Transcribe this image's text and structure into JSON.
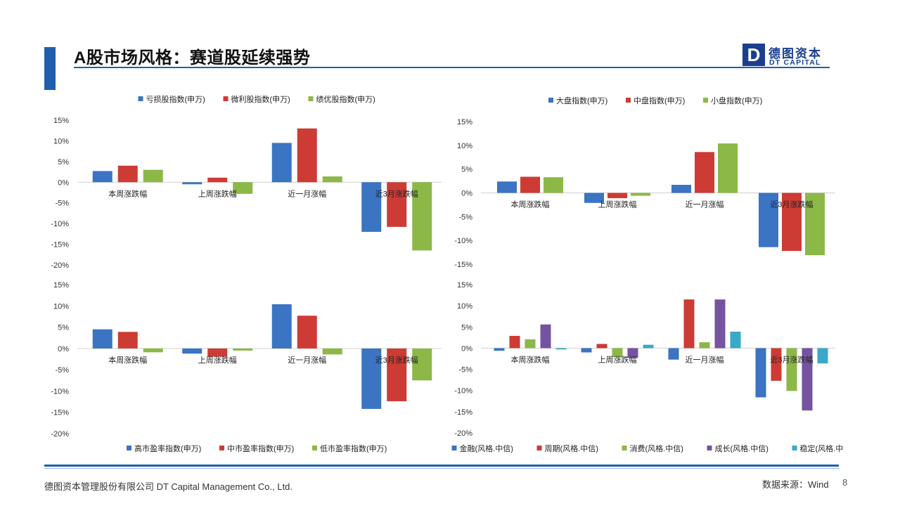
{
  "header": {
    "title": "A股市场风格：赛道股延续强势",
    "logo_mark": "D",
    "logo_cn": "德图资本",
    "logo_en": "DT CAPITAL",
    "accent_color": "#1f5fae"
  },
  "footer": {
    "company": "德图资本管理股份有限公司  DT Capital  Management  Co., Ltd.",
    "source": "数据来源：Wind",
    "page_number": "8"
  },
  "chart_data": [
    {
      "type": "bar",
      "categories": [
        "本周涨跌幅",
        "上周涨跌幅",
        "近一月涨幅",
        "近3月涨跌幅"
      ],
      "series": [
        {
          "name": "亏损股指数(申万)",
          "color": "#3a74c2",
          "values": [
            2.7,
            -0.5,
            9.5,
            -12.0
          ]
        },
        {
          "name": "微利股指数(申万)",
          "color": "#cd3b35",
          "values": [
            4.0,
            1.1,
            13.0,
            -10.8
          ]
        },
        {
          "name": "绩优股指数(申万)",
          "color": "#8cb847",
          "values": [
            3.0,
            -2.8,
            1.4,
            -16.5
          ]
        }
      ],
      "ylim": [
        -20,
        15
      ],
      "yticks": [
        "15%",
        "10%",
        "5%",
        "0%",
        "-5%",
        "-10%",
        "-15%",
        "-20%"
      ],
      "legend": "top"
    },
    {
      "type": "bar",
      "categories": [
        "本周涨跌幅",
        "上周涨跌幅",
        "近一月涨幅",
        "近3月涨跌幅"
      ],
      "series": [
        {
          "name": "大盘指数(申万)",
          "color": "#3a74c2",
          "values": [
            2.4,
            -2.1,
            1.7,
            -11.4
          ]
        },
        {
          "name": "中盘指数(申万)",
          "color": "#cd3b35",
          "values": [
            3.4,
            -1.1,
            8.6,
            -12.2
          ]
        },
        {
          "name": "小盘指数(申万)",
          "color": "#8cb847",
          "values": [
            3.3,
            -0.6,
            10.4,
            -13.1
          ]
        }
      ],
      "ylim": [
        -15,
        15
      ],
      "yticks": [
        "15%",
        "10%",
        "5%",
        "0%",
        "-5%",
        "-10%",
        "-15%"
      ],
      "legend": "top"
    },
    {
      "type": "bar",
      "categories": [
        "本周涨跌幅",
        "上周涨跌幅",
        "近一月涨幅",
        "近3月涨跌幅"
      ],
      "series": [
        {
          "name": "高市盈率指数(申万)",
          "color": "#3a74c2",
          "values": [
            4.5,
            -1.2,
            10.4,
            -14.2
          ]
        },
        {
          "name": "中市盈率指数(申万)",
          "color": "#cd3b35",
          "values": [
            3.9,
            -1.9,
            7.7,
            -12.4
          ]
        },
        {
          "name": "低市盈率指数(申万)",
          "color": "#8cb847",
          "values": [
            -0.9,
            -0.5,
            -1.4,
            -7.5
          ]
        }
      ],
      "ylim": [
        -20,
        15
      ],
      "yticks": [
        "15%",
        "10%",
        "5%",
        "0%",
        "-5%",
        "-10%",
        "-15%",
        "-20%"
      ],
      "legend": "bottom"
    },
    {
      "type": "bar",
      "categories": [
        "本周涨跌幅",
        "上周涨跌幅",
        "近一月涨幅",
        "近3月涨跌幅"
      ],
      "series": [
        {
          "name": "金融(风格.中信)",
          "color": "#3a74c2",
          "values": [
            -0.6,
            -1.0,
            -2.7,
            -11.6
          ]
        },
        {
          "name": "周期(风格.中信)",
          "color": "#cd3b35",
          "values": [
            2.9,
            1.0,
            11.5,
            -7.7
          ]
        },
        {
          "name": "消费(风格.中信)",
          "color": "#8cb847",
          "values": [
            2.1,
            -2.1,
            1.4,
            -10.1
          ]
        },
        {
          "name": "成长(风格.中信)",
          "color": "#7553a1",
          "values": [
            5.6,
            -2.3,
            11.5,
            -14.7
          ]
        },
        {
          "name": "稳定(风格.中信)",
          "color": "#38a9c6",
          "values": [
            -0.3,
            0.8,
            3.9,
            -3.6
          ]
        }
      ],
      "ylim": [
        -20,
        15
      ],
      "yticks": [
        "15%",
        "10%",
        "5%",
        "0%",
        "-5%",
        "-10%",
        "-15%",
        "-20%"
      ],
      "legend": "bottom"
    }
  ]
}
